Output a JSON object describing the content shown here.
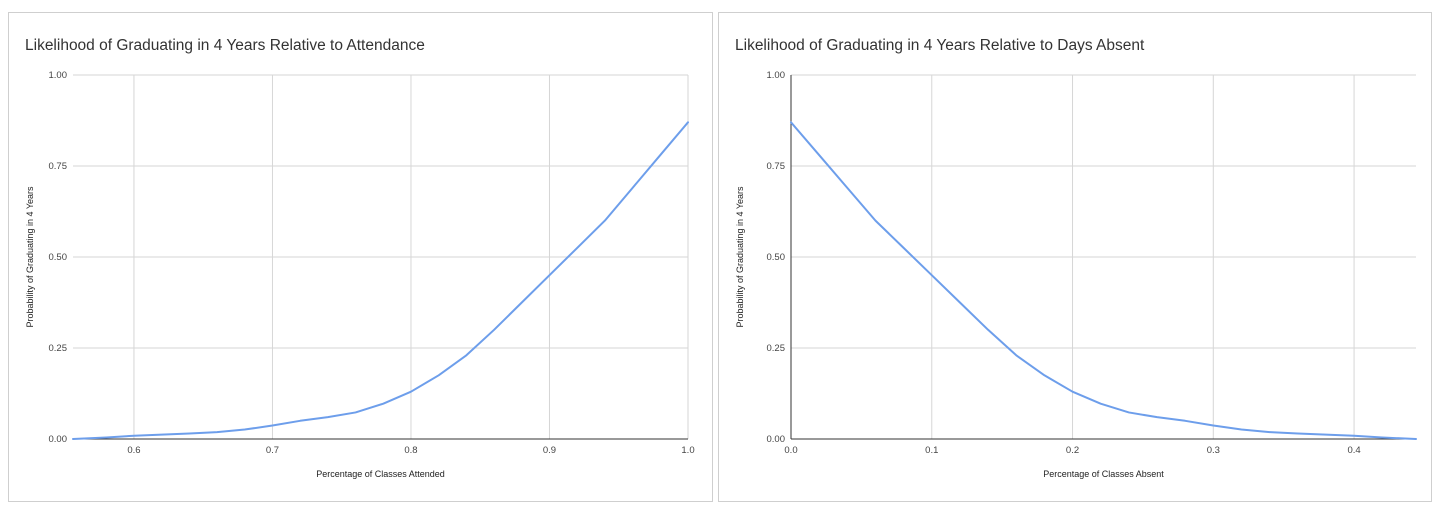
{
  "chart_data": [
    {
      "type": "line",
      "title": "Likelihood of Graduating in 4 Years Relative to Attendance",
      "xlabel": "Percentage of Classes Attended",
      "ylabel": "Probability of Graduating in 4 Years",
      "xlim": [
        0.556,
        1.0
      ],
      "ylim": [
        0,
        1
      ],
      "x_ticks": [
        "0.6",
        "0.7",
        "0.8",
        "0.9",
        "1.0"
      ],
      "y_ticks": [
        "0.00",
        "0.25",
        "0.50",
        "0.75",
        "1.00"
      ],
      "grid": true,
      "legend": "none",
      "line_color": "#6d9eeb",
      "series": [
        {
          "x": [
            0.556,
            0.58,
            0.6,
            0.62,
            0.64,
            0.66,
            0.68,
            0.7,
            0.72,
            0.74,
            0.76,
            0.78,
            0.8,
            0.82,
            0.84,
            0.86,
            0.88,
            0.9,
            0.92,
            0.94,
            0.96,
            0.98,
            1.0
          ],
          "y": [
            0.0,
            0.004,
            0.009,
            0.012,
            0.015,
            0.019,
            0.026,
            0.037,
            0.05,
            0.06,
            0.073,
            0.097,
            0.13,
            0.175,
            0.23,
            0.3,
            0.375,
            0.45,
            0.525,
            0.6,
            0.69,
            0.78,
            0.87
          ]
        }
      ]
    },
    {
      "type": "line",
      "title": "Likelihood of Graduating in 4 Years Relative to Days Absent",
      "xlabel": "Percentage of Classes Absent",
      "ylabel": "Probability of Graduating in 4 Years",
      "xlim": [
        0,
        0.444
      ],
      "ylim": [
        0,
        1
      ],
      "x_ticks": [
        "0.0",
        "0.1",
        "0.2",
        "0.3",
        "0.4"
      ],
      "y_ticks": [
        "0.00",
        "0.25",
        "0.50",
        "0.75",
        "1.00"
      ],
      "grid": true,
      "legend": "none",
      "line_color": "#6d9eeb",
      "series": [
        {
          "x": [
            0.0,
            0.02,
            0.04,
            0.06,
            0.08,
            0.1,
            0.12,
            0.14,
            0.16,
            0.18,
            0.2,
            0.22,
            0.24,
            0.26,
            0.28,
            0.3,
            0.32,
            0.34,
            0.36,
            0.38,
            0.4,
            0.42,
            0.444
          ],
          "y": [
            0.87,
            0.78,
            0.69,
            0.6,
            0.525,
            0.45,
            0.375,
            0.3,
            0.23,
            0.175,
            0.13,
            0.097,
            0.073,
            0.06,
            0.05,
            0.037,
            0.026,
            0.019,
            0.015,
            0.012,
            0.009,
            0.004,
            0.0
          ]
        }
      ]
    }
  ]
}
